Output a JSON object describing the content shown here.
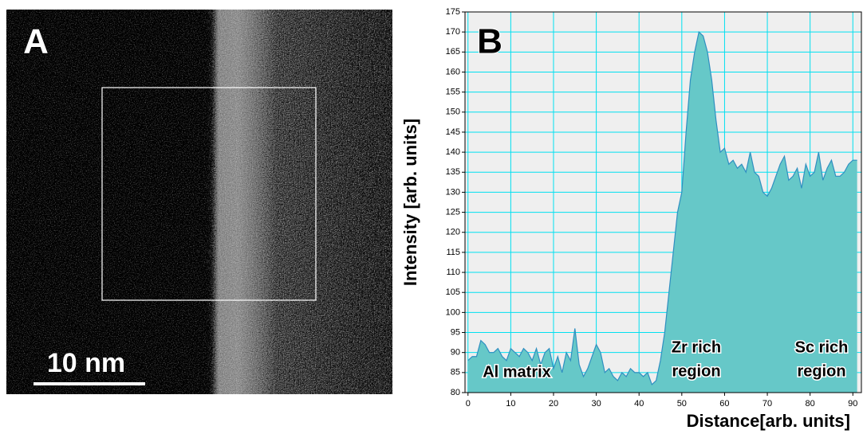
{
  "panel_a": {
    "label": "A",
    "scale_bar": "10 nm"
  },
  "chart_data": {
    "type": "area",
    "label": "B",
    "xlabel": "Distance[arb. units]",
    "ylabel": "Intensity [arb. units]",
    "x": [
      0,
      1,
      2,
      3,
      4,
      5,
      6,
      7,
      8,
      9,
      10,
      11,
      12,
      13,
      14,
      15,
      16,
      17,
      18,
      19,
      20,
      21,
      22,
      23,
      24,
      25,
      26,
      27,
      28,
      29,
      30,
      31,
      32,
      33,
      34,
      35,
      36,
      37,
      38,
      39,
      40,
      41,
      42,
      43,
      44,
      45,
      46,
      47,
      48,
      49,
      50,
      51,
      52,
      53,
      54,
      55,
      56,
      57,
      58,
      59,
      60,
      61,
      62,
      63,
      64,
      65,
      66,
      67,
      68,
      69,
      70,
      71,
      72,
      73,
      74,
      75,
      76,
      77,
      78,
      79,
      80,
      81,
      82,
      83,
      84,
      85,
      86,
      87,
      88,
      89,
      90,
      91
    ],
    "values": [
      88,
      89,
      89,
      93,
      92,
      90,
      90,
      91,
      89,
      88,
      91,
      90,
      89,
      91,
      90,
      88,
      91,
      87,
      90,
      91,
      86,
      89,
      85,
      90,
      88,
      96,
      87,
      84,
      86,
      89,
      92,
      90,
      85,
      86,
      84,
      83,
      85,
      84,
      86,
      85,
      85,
      84,
      85,
      82,
      83,
      88,
      95,
      105,
      115,
      125,
      130,
      145,
      158,
      165,
      170,
      169,
      165,
      158,
      148,
      140,
      141,
      137,
      138,
      136,
      137,
      135,
      140,
      135,
      134,
      130,
      129,
      131,
      134,
      137,
      139,
      133,
      134,
      136,
      131,
      137,
      134,
      135,
      140,
      133,
      136,
      138,
      134,
      134,
      135,
      137,
      138,
      138
    ],
    "color": "#66c8c8",
    "line_color": "#2f8fc0",
    "grid": true,
    "xlim": [
      -0.7,
      92
    ],
    "ylim": [
      80,
      175
    ],
    "xticks": [
      0,
      10,
      20,
      30,
      40,
      50,
      60,
      70,
      80,
      90
    ],
    "yticks": [
      80,
      85,
      90,
      95,
      100,
      105,
      110,
      115,
      120,
      125,
      130,
      135,
      140,
      145,
      150,
      155,
      160,
      165,
      170,
      175
    ],
    "annotations": [
      [
        "Al matrix"
      ],
      [
        "Zr rich",
        "region"
      ],
      [
        "Sc rich",
        "region"
      ]
    ]
  }
}
